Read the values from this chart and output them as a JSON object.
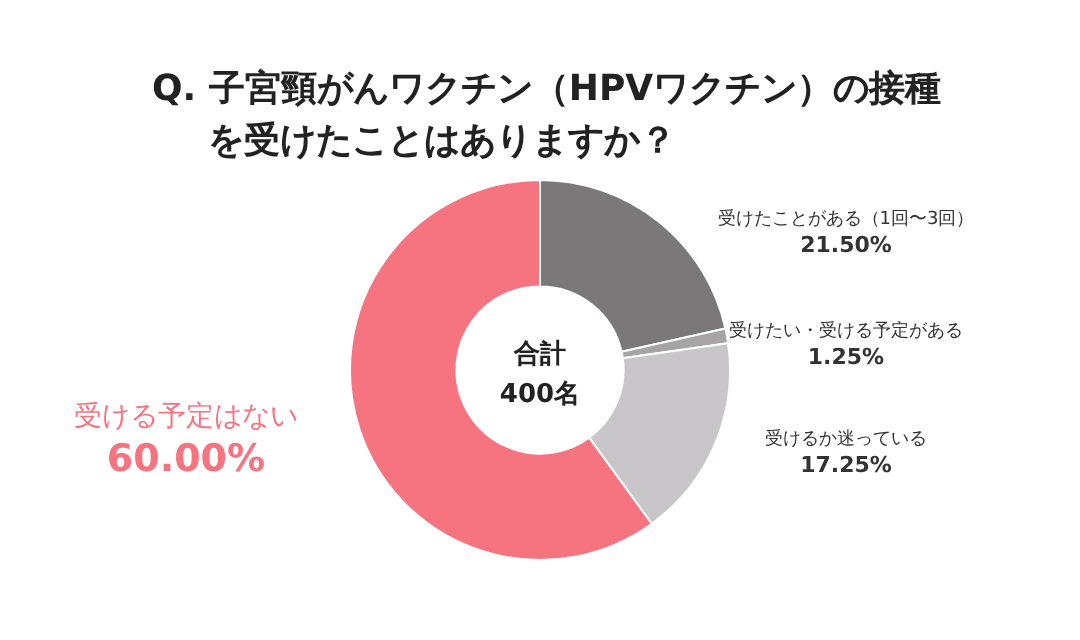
{
  "chart_data": {
    "type": "donut",
    "title": "Q. 子宮頸がんワクチン（HPVワクチン）の接種を受けたことはありますか？",
    "categories": [
      "受けたことがある（1回〜3回）",
      "受けたい・受ける予定がある",
      "受けるか迷っている",
      "受ける予定はない"
    ],
    "values": [
      21.5,
      1.25,
      17.25,
      60.0
    ],
    "value_labels": [
      "21.50%",
      "1.25%",
      "17.25%",
      "60.00%"
    ],
    "colors": [
      "#7b7879",
      "#a6a4a5",
      "#c9c6c9",
      "#f6747f"
    ],
    "annotations": [
      "合計\n400名"
    ],
    "legend": false
  }
}
